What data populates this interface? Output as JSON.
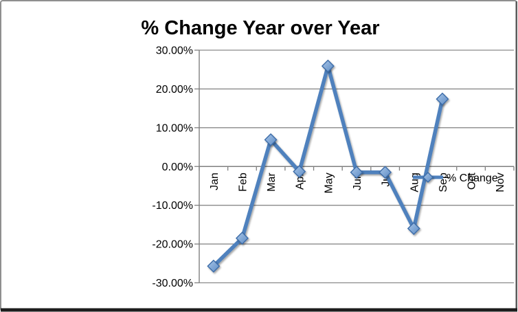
{
  "chart_data": {
    "type": "line",
    "title": "% Change Year over Year",
    "xlabel": "",
    "ylabel": "",
    "categories": [
      "Jan",
      "Feb",
      "Mar",
      "Apr",
      "May",
      "Jun",
      "Jul",
      "Aug",
      "Sep",
      "Oct",
      "Nov"
    ],
    "series": [
      {
        "name": "% Change",
        "marker": "diamond",
        "values": [
          -25.7,
          -18.5,
          6.9,
          -1.3,
          25.9,
          -1.5,
          -1.5,
          -16.0,
          17.4,
          null,
          null
        ]
      }
    ],
    "ylim": [
      -30,
      30
    ],
    "y_tick_step": 10,
    "y_ticks": [
      {
        "value": 30,
        "label": "30.00%"
      },
      {
        "value": 20,
        "label": "20.00%"
      },
      {
        "value": 10,
        "label": "10.00%"
      },
      {
        "value": 0,
        "label": "0.00%"
      },
      {
        "value": -10,
        "label": "-10.00%"
      },
      {
        "value": -20,
        "label": "-20.00%"
      },
      {
        "value": -30,
        "label": "-30.00%"
      }
    ],
    "x_axis": {
      "label_rotation_deg": 90,
      "axis_crosses_at": 0
    },
    "grid": true,
    "legend": {
      "position": "right-middle",
      "entries": [
        "% Change"
      ]
    },
    "styles": {
      "line_color": "#4f81bd",
      "marker_fill_light": "#a9c6e8",
      "marker_fill_dark": "#5c8bc4",
      "marker_border_color": "#3c6ca8",
      "grid_color": "#8a8a8a",
      "axis_color": "#7f7f7f",
      "text_color": "#000000",
      "frame_border_color": "#8f8f8f",
      "frame_shadow_color": "#1c1c1c",
      "background_color": "#ffffff"
    }
  }
}
